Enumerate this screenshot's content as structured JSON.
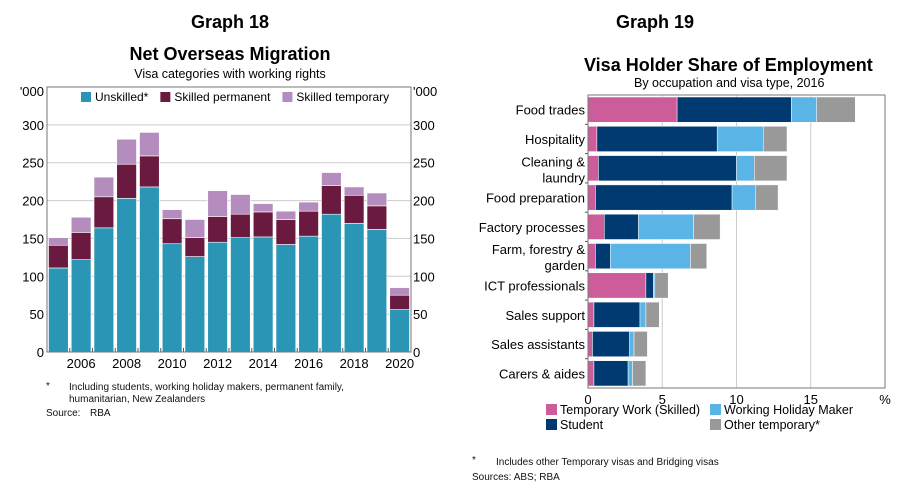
{
  "chart_data": [
    {
      "type": "bar",
      "stacked": true,
      "orientation": "vertical",
      "label": "Graph 18",
      "title": "Net Overseas Migration",
      "subtitle": "Visa categories with working rights",
      "ylabel_left": "'000",
      "ylabel_right": "'000",
      "ylim": [
        0,
        350
      ],
      "yticks": [
        0,
        50,
        100,
        150,
        200,
        250,
        300
      ],
      "xticks": [
        "2006",
        "2008",
        "2010",
        "2012",
        "2014",
        "2016",
        "2018",
        "2020"
      ],
      "grid": true,
      "legend_position": "top",
      "categories": [
        "2005",
        "2006",
        "2007",
        "2008",
        "2009",
        "2010",
        "2011",
        "2012",
        "2013",
        "2014",
        "2015",
        "2016",
        "2017",
        "2018",
        "2019",
        "2020"
      ],
      "series": [
        {
          "name": "Unskilled*",
          "color": "#2a95b4",
          "values": [
            111,
            122,
            164,
            203,
            218,
            143,
            126,
            145,
            151,
            152,
            142,
            153,
            182,
            170,
            162,
            56
          ]
        },
        {
          "name": "Skilled permanent",
          "color": "#6b1a3f",
          "values": [
            30,
            36,
            41,
            45,
            41,
            33,
            25,
            34,
            31,
            33,
            33,
            33,
            38,
            37,
            31,
            19
          ]
        },
        {
          "name": "Skilled temporary",
          "color": "#b48cbe",
          "values": [
            10,
            20,
            26,
            33,
            31,
            12,
            24,
            34,
            26,
            11,
            11,
            12,
            17,
            11,
            17,
            10
          ]
        }
      ],
      "footnote_marker": "*",
      "footnote_lines": [
        "Including students, working holiday makers, permanent family,",
        "humanitarian, New Zealanders"
      ],
      "source_label": "Source:",
      "source": "RBA"
    },
    {
      "type": "bar",
      "stacked": true,
      "orientation": "horizontal",
      "label": "Graph 19",
      "title": "Visa Holder Share of Employment",
      "subtitle": "By occupation and visa type, 2016",
      "xlabel": "%",
      "xlim": [
        0,
        20
      ],
      "xticks": [
        0,
        5,
        10,
        15
      ],
      "grid": true,
      "legend_position": "bottom",
      "categories": [
        [
          "Food trades"
        ],
        [
          "Hospitality"
        ],
        [
          "Cleaning &",
          "laundry"
        ],
        [
          "Food preparation"
        ],
        [
          "Factory processes"
        ],
        [
          "Farm, forestry &",
          "garden"
        ],
        [
          "ICT professionals"
        ],
        [
          "Sales support"
        ],
        [
          "Sales assistants"
        ],
        [
          "Carers & aides"
        ]
      ],
      "series": [
        {
          "name": "Temporary Work (Skilled)",
          "color": "#cc5c9a",
          "values": [
            6.0,
            0.6,
            0.7,
            0.5,
            1.1,
            0.5,
            3.9,
            0.4,
            0.3,
            0.4
          ]
        },
        {
          "name": "Student",
          "color": "#003a70",
          "values": [
            7.7,
            8.1,
            9.3,
            9.2,
            2.3,
            1.0,
            0.5,
            3.1,
            2.5,
            2.3
          ]
        },
        {
          "name": "Working Holiday Maker",
          "color": "#5ab4e5",
          "values": [
            1.7,
            3.1,
            1.2,
            1.6,
            3.7,
            5.4,
            0.1,
            0.4,
            0.3,
            0.3
          ]
        },
        {
          "name": "Other temporary*",
          "color": "#999999",
          "values": [
            2.6,
            1.6,
            2.2,
            1.5,
            1.8,
            1.1,
            0.9,
            0.9,
            0.9,
            0.9
          ]
        }
      ],
      "footnote_marker": "*",
      "footnote": "Includes other Temporary visas and Bridging visas",
      "source": "Sources: ABS; RBA"
    }
  ]
}
